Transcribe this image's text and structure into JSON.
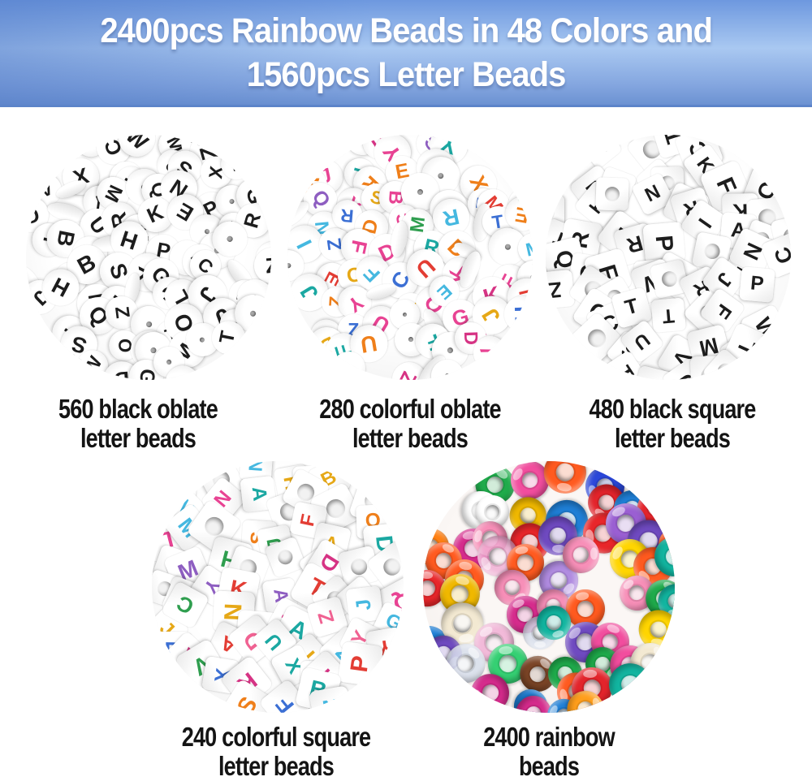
{
  "banner": {
    "line1": "2400pcs Rainbow Beads in 48 Colors and",
    "line2": "1560pcs Letter Beads",
    "text_color": "#ffffff",
    "gradient_colors": [
      "#6d98df",
      "#a9c8f1",
      "#6c92d2"
    ]
  },
  "caption_text_color": "#141414",
  "products": [
    {
      "id": "black-oblate-letter-beads",
      "caption_line1": "560 black oblate",
      "caption_line2": "letter beads",
      "bead_type": "oblate",
      "letters": "ABCDEFGHIJKLMNOPQRSTUVWXYZ",
      "letter_colors": [
        "#1d1d1d"
      ]
    },
    {
      "id": "colorful-oblate-letter-beads",
      "caption_line1": "280 colorful oblate",
      "caption_line2": "letter beads",
      "bead_type": "oblate",
      "letters": "ABCDEFGHIJKLMNOPQRSTUVWXYZ",
      "letter_colors": [
        "#ef7f1a",
        "#1ba8a2",
        "#8e5ec1",
        "#e84393",
        "#2f9e4f",
        "#e33d34",
        "#3b6fd4",
        "#e6a817",
        "#d63384",
        "#45b8e0"
      ]
    },
    {
      "id": "black-square-letter-beads",
      "caption_line1": "480 black square",
      "caption_line2": "letter beads",
      "bead_type": "cube",
      "letters": "ABCDEFGHIJKLMNOPQRSTUVWXYZ",
      "letter_colors": [
        "#1d1d1d"
      ]
    },
    {
      "id": "colorful-square-letter-beads",
      "caption_line1": "240 colorful square",
      "caption_line2": "letter beads",
      "bead_type": "cube",
      "letters": "ABCDEFGHIJKLMNOPQRSTUVWXYZ",
      "letter_colors": [
        "#ef7f1a",
        "#1ba8a2",
        "#8e5ec1",
        "#e84393",
        "#2f9e4f",
        "#e33d34",
        "#3b6fd4",
        "#e6a817",
        "#d63384",
        "#45b8e0",
        "#f06292"
      ]
    },
    {
      "id": "rainbow-beads",
      "caption_line1": "2400 rainbow",
      "caption_line2": "beads",
      "bead_type": "pony",
      "bead_colors": [
        "#e3242b",
        "#ff7f11",
        "#ff9e1b",
        "#ffd500",
        "#f0b800",
        "#1fab4b",
        "#35d073",
        "#12b5a0",
        "#1f7fd6",
        "#2b47d9",
        "#6f4ac0",
        "#9a5fd2",
        "#b08be0",
        "#d52b8c",
        "#f24d9e",
        "#f78fb8",
        "#ffffff",
        "#f3e9d2",
        "#7a4426",
        "#ff5a1f",
        "#e8262a",
        "rgba(215,222,235,0.85)",
        "rgba(240,170,210,0.8)",
        "rgba(190,230,250,0.8)"
      ]
    }
  ]
}
